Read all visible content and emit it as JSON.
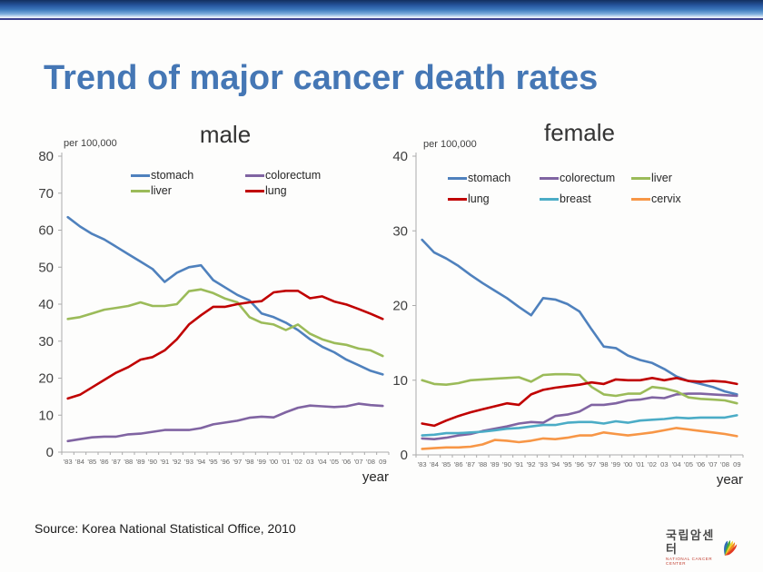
{
  "slide": {
    "title": "Trend of major cancer death rates",
    "title_color": "#4577B5",
    "source": "Source: Korea National Statistical Office, 2010",
    "logo": {
      "korean": "국립암센터",
      "english": "NATIONAL CANCER CENTER",
      "mark_colors": [
        "#2f6db5",
        "#46a83c",
        "#f2d22e",
        "#f0861f",
        "#e23a23"
      ]
    }
  },
  "chart_data": [
    {
      "type": "line",
      "title": "male",
      "unit_label": "per 100,000",
      "xlabel": "year",
      "ylim": [
        0,
        80
      ],
      "ytick_step": 10,
      "grid": false,
      "legend_position": "top-inside",
      "categories": [
        "'83",
        "'84",
        "'85",
        "'86",
        "'87",
        "'88",
        "'89",
        "'90",
        "'91",
        "'92",
        "'93",
        "'94",
        "'95",
        "'96",
        "'97",
        "'98",
        "'99",
        "'00",
        "'01",
        "'02",
        "03",
        "'04",
        "'05",
        "'06",
        "'07",
        "'08",
        "09"
      ],
      "series": [
        {
          "name": "stomach",
          "color": "#4F81BD",
          "values": [
            63.5,
            61,
            59,
            57.5,
            55.5,
            53.5,
            51.5,
            49.5,
            46,
            48.5,
            50,
            50.5,
            46.5,
            44.5,
            42.5,
            41,
            37.5,
            36.5,
            35,
            33,
            30.5,
            28.5,
            27,
            25,
            23.5,
            22,
            21
          ]
        },
        {
          "name": "colorectum",
          "color": "#8064A2",
          "values": [
            3,
            3.5,
            4,
            4.2,
            4.2,
            4.8,
            5,
            5.5,
            6,
            6,
            6,
            6.5,
            7.5,
            8,
            8.5,
            9.3,
            9.6,
            9.4,
            10.8,
            12,
            12.6,
            12.4,
            12.2,
            12.4,
            13.1,
            12.7,
            12.5
          ]
        },
        {
          "name": "liver",
          "color": "#9BBB59",
          "values": [
            36,
            36.5,
            37.5,
            38.5,
            39,
            39.5,
            40.5,
            39.5,
            39.5,
            40,
            43.5,
            44,
            43,
            41.5,
            40.5,
            36.5,
            35,
            34.5,
            33,
            34.5,
            32,
            30.5,
            29.5,
            29,
            28,
            27.5,
            26
          ]
        },
        {
          "name": "lung",
          "color": "#C00000",
          "values": [
            14.5,
            15.5,
            17.5,
            19.5,
            21.5,
            23,
            25,
            25.7,
            27.5,
            30.5,
            34.5,
            37,
            39.3,
            39.3,
            40,
            40.5,
            40.8,
            43.2,
            43.6,
            43.6,
            41.6,
            42.1,
            40.7,
            39.9,
            38.7,
            37.4,
            36
          ]
        }
      ]
    },
    {
      "type": "line",
      "title": "female",
      "unit_label": "per 100,000",
      "xlabel": "year",
      "ylim": [
        0,
        40
      ],
      "ytick_step": 10,
      "grid": false,
      "legend_position": "top-inside",
      "categories": [
        "'83",
        "'84",
        "'85",
        "'86",
        "'87",
        "'88",
        "'89",
        "'90",
        "'91",
        "'92",
        "'93",
        "'94",
        "'95",
        "'96",
        "'97",
        "'98",
        "'99",
        "'00",
        "'01",
        "'02",
        "03",
        "'04",
        "'05",
        "'06",
        "'07",
        "'08",
        "09"
      ],
      "series": [
        {
          "name": "stomach",
          "color": "#4F81BD",
          "values": [
            28.8,
            27.1,
            26.3,
            25.3,
            24.1,
            23,
            22,
            21,
            19.8,
            18.7,
            21,
            20.8,
            20.2,
            19.2,
            16.8,
            14.5,
            14.3,
            13.3,
            12.7,
            12.3,
            11.5,
            10.5,
            9.9,
            9.5,
            9.1,
            8.5,
            8.1
          ]
        },
        {
          "name": "colorectum",
          "color": "#8064A2",
          "values": [
            2.2,
            2.1,
            2.3,
            2.6,
            2.8,
            3.2,
            3.5,
            3.8,
            4.2,
            4.4,
            4.3,
            5.2,
            5.4,
            5.8,
            6.7,
            6.7,
            6.9,
            7.3,
            7.4,
            7.7,
            7.6,
            8.1,
            8.2,
            8.2,
            8.1,
            8,
            7.9
          ]
        },
        {
          "name": "liver",
          "color": "#9BBB59",
          "values": [
            10,
            9.5,
            9.4,
            9.6,
            10,
            10.1,
            10.2,
            10.3,
            10.4,
            9.8,
            10.7,
            10.8,
            10.8,
            10.7,
            9.1,
            8.1,
            7.9,
            8.2,
            8.2,
            9.1,
            8.9,
            8.5,
            7.7,
            7.5,
            7.4,
            7.3,
            6.9
          ]
        },
        {
          "name": "lung",
          "color": "#C00000",
          "values": [
            4.2,
            3.9,
            4.6,
            5.2,
            5.7,
            6.1,
            6.5,
            6.9,
            6.7,
            8.1,
            8.7,
            9,
            9.2,
            9.4,
            9.7,
            9.5,
            10.1,
            10,
            10,
            10.3,
            10,
            10.3,
            9.9,
            9.8,
            9.9,
            9.8,
            9.5
          ]
        },
        {
          "name": "breast",
          "color": "#4BACC6",
          "values": [
            2.6,
            2.7,
            2.9,
            2.9,
            3,
            3.1,
            3.3,
            3.5,
            3.6,
            3.8,
            4,
            4,
            4.3,
            4.4,
            4.4,
            4.2,
            4.5,
            4.3,
            4.6,
            4.7,
            4.8,
            5,
            4.9,
            5,
            5,
            5,
            5.3
          ]
        },
        {
          "name": "cervix",
          "color": "#F79646",
          "values": [
            0.8,
            0.9,
            1,
            1,
            1.1,
            1.4,
            2,
            1.9,
            1.7,
            1.9,
            2.2,
            2.1,
            2.3,
            2.6,
            2.6,
            3,
            2.8,
            2.6,
            2.8,
            3,
            3.3,
            3.6,
            3.4,
            3.2,
            3,
            2.8,
            2.5
          ]
        }
      ]
    }
  ]
}
